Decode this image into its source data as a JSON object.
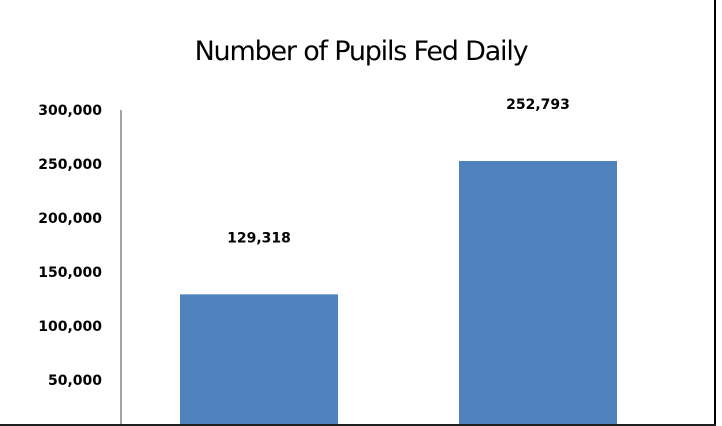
{
  "chart_data": {
    "type": "bar",
    "title": "Number of Pupils Fed Daily",
    "categories": [
      "",
      ""
    ],
    "values": [
      129318,
      252793
    ],
    "data_labels": [
      "129,318",
      "252,793"
    ],
    "xlabel": "",
    "ylabel": "",
    "ylim": [
      0,
      300000
    ],
    "yticks": [
      50000,
      100000,
      150000,
      200000,
      250000,
      300000
    ],
    "ytick_labels": [
      "50,000",
      "100,000",
      "150,000",
      "200,000",
      "250,000",
      "300,000"
    ],
    "grid": false,
    "legend": "none",
    "bar_color": "#4f81bd"
  }
}
